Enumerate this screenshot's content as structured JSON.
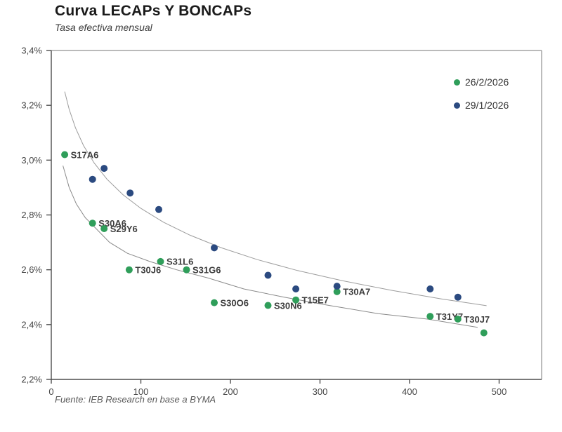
{
  "chart_data": {
    "type": "scatter",
    "title": "Curva LECAPs Y BONCAPs",
    "subtitle": "Tasa efectiva mensual",
    "source": "Fuente: IEB Research en base a BYMA",
    "xlabel": "",
    "ylabel": "",
    "x_axis": {
      "min": 0,
      "max": 548,
      "ticks": [
        {
          "value": 0,
          "label": "0"
        },
        {
          "value": 100,
          "label": "100"
        },
        {
          "value": 200,
          "label": "200"
        },
        {
          "value": 300,
          "label": "300"
        },
        {
          "value": 400,
          "label": "400"
        },
        {
          "value": 500,
          "label": "500"
        }
      ]
    },
    "y_axis": {
      "min": 2.2,
      "max": 3.4,
      "units": "percent, tasa efectiva mensual",
      "ticks": [
        {
          "value": 3.4,
          "label": "3,4%"
        },
        {
          "value": 3.2,
          "label": "3,2%"
        },
        {
          "value": 3.0,
          "label": "3,0%"
        },
        {
          "value": 2.8,
          "label": "2,8%"
        },
        {
          "value": 2.6,
          "label": "2,6%"
        },
        {
          "value": 2.4,
          "label": "2,4%"
        },
        {
          "value": 2.2,
          "label": "2,2%"
        }
      ]
    },
    "legend": {
      "position": "top-right-inside",
      "items": [
        {
          "label": "26/2/2026",
          "color": "#2f9e5a"
        },
        {
          "label": "29/1/2026",
          "color": "#2b4a80"
        }
      ]
    },
    "series": [
      {
        "name": "26/2/2026",
        "color": "#2f9e5a",
        "points": [
          {
            "x": 15,
            "y": 3.02,
            "label": "S17A6"
          },
          {
            "x": 46,
            "y": 2.77,
            "label": "S30A6"
          },
          {
            "x": 59,
            "y": 2.75,
            "label": "S29Y6"
          },
          {
            "x": 87,
            "y": 2.6,
            "label": "T30J6"
          },
          {
            "x": 122,
            "y": 2.63,
            "label": "S31L6"
          },
          {
            "x": 151,
            "y": 2.6,
            "label": "S31G6"
          },
          {
            "x": 182,
            "y": 2.48,
            "label": "S30O6"
          },
          {
            "x": 242,
            "y": 2.47,
            "label": "S30N6"
          },
          {
            "x": 273,
            "y": 2.49,
            "label": "T15E7"
          },
          {
            "x": 319,
            "y": 2.52,
            "label": "T30A7"
          },
          {
            "x": 423,
            "y": 2.43,
            "label": "T31Y7"
          },
          {
            "x": 454,
            "y": 2.42,
            "label": "T30J7"
          },
          {
            "x": 483,
            "y": 2.37,
            "label": ""
          }
        ]
      },
      {
        "name": "29/1/2026",
        "color": "#2b4a80",
        "points": [
          {
            "x": 46,
            "y": 2.93,
            "label": ""
          },
          {
            "x": 59,
            "y": 2.97,
            "label": ""
          },
          {
            "x": 88,
            "y": 2.88,
            "label": ""
          },
          {
            "x": 120,
            "y": 2.82,
            "label": ""
          },
          {
            "x": 182,
            "y": 2.68,
            "label": ""
          },
          {
            "x": 242,
            "y": 2.58,
            "label": ""
          },
          {
            "x": 273,
            "y": 2.53,
            "label": ""
          },
          {
            "x": 319,
            "y": 2.54,
            "label": ""
          },
          {
            "x": 423,
            "y": 2.53,
            "label": ""
          },
          {
            "x": 454,
            "y": 2.5,
            "label": ""
          }
        ]
      }
    ],
    "trendlines": [
      {
        "for_series": "29/1/2026",
        "color": "#9c9c9c",
        "points": [
          [
            15,
            3.25
          ],
          [
            20,
            3.185
          ],
          [
            27,
            3.118
          ],
          [
            36,
            3.053
          ],
          [
            48,
            2.989
          ],
          [
            62,
            2.931
          ],
          [
            80,
            2.874
          ],
          [
            100,
            2.824
          ],
          [
            125,
            2.774
          ],
          [
            155,
            2.726
          ],
          [
            190,
            2.68
          ],
          [
            230,
            2.637
          ],
          [
            275,
            2.597
          ],
          [
            325,
            2.56
          ],
          [
            380,
            2.525
          ],
          [
            435,
            2.494
          ],
          [
            486,
            2.469
          ]
        ]
      },
      {
        "for_series": "26/2/2026",
        "color": "#8a8a8a",
        "points": [
          [
            13,
            2.98
          ],
          [
            20,
            2.9
          ],
          [
            28,
            2.84
          ],
          [
            38,
            2.79
          ],
          [
            50,
            2.75
          ],
          [
            65,
            2.7
          ],
          [
            85,
            2.66
          ],
          [
            110,
            2.63
          ],
          [
            140,
            2.6
          ],
          [
            175,
            2.57
          ],
          [
            215,
            2.53
          ],
          [
            260,
            2.5
          ],
          [
            310,
            2.47
          ],
          [
            365,
            2.44
          ],
          [
            420,
            2.42
          ],
          [
            476,
            2.39
          ]
        ]
      }
    ],
    "grid": false
  }
}
